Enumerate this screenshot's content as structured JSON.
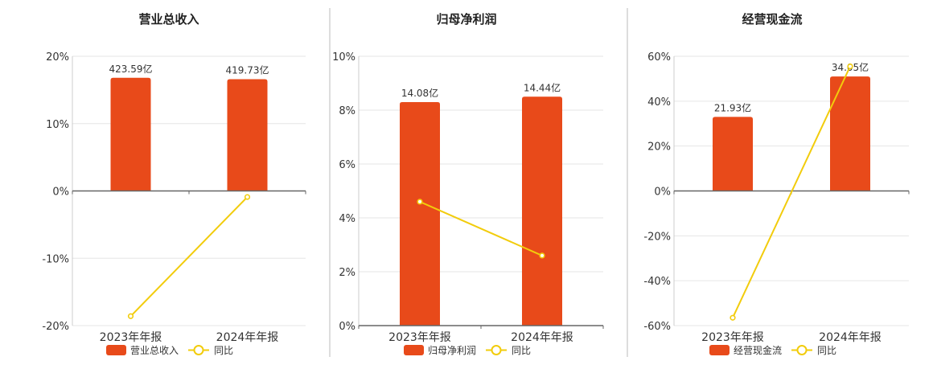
{
  "chart_data": [
    {
      "type": "bar",
      "title": "营业总收入",
      "categories": [
        "2023年年报",
        "2024年年报"
      ],
      "series": [
        {
          "name": "营业总收入",
          "type": "bar",
          "values": [
            16.8,
            16.6
          ],
          "labels": [
            "423.59亿",
            "419.73亿"
          ]
        },
        {
          "name": "同比",
          "type": "line",
          "values": [
            -18.6,
            -0.9
          ]
        }
      ],
      "ylim": [
        -20,
        20
      ],
      "yticks": [
        20,
        10,
        0,
        -10,
        -20
      ],
      "ytick_labels": [
        "20%",
        "10%",
        "0%",
        "-10%",
        "-20%"
      ],
      "grid": true,
      "legend": "bottom",
      "colors": {
        "bar": "#E84A1A",
        "line": "#F2CC0C"
      }
    },
    {
      "type": "bar",
      "title": "归母净利润",
      "categories": [
        "2023年年报",
        "2024年年报"
      ],
      "series": [
        {
          "name": "归母净利润",
          "type": "bar",
          "values": [
            8.3,
            8.5
          ],
          "labels": [
            "14.08亿",
            "14.44亿"
          ]
        },
        {
          "name": "同比",
          "type": "line",
          "values": [
            4.6,
            2.6
          ]
        }
      ],
      "ylim": [
        0,
        10
      ],
      "yticks": [
        10,
        8,
        6,
        4,
        2,
        0
      ],
      "ytick_labels": [
        "10%",
        "8%",
        "6%",
        "4%",
        "2%",
        "0%"
      ],
      "grid": true,
      "legend": "bottom",
      "colors": {
        "bar": "#E84A1A",
        "line": "#F2CC0C"
      }
    },
    {
      "type": "bar",
      "title": "经营现金流",
      "categories": [
        "2023年年报",
        "2024年年报"
      ],
      "series": [
        {
          "name": "经营现金流",
          "type": "bar",
          "values": [
            33,
            51
          ],
          "labels": [
            "21.93亿",
            "34.05亿"
          ]
        },
        {
          "name": "同比",
          "type": "line",
          "values": [
            -56.5,
            55.5
          ]
        }
      ],
      "ylim": [
        -60,
        60
      ],
      "yticks": [
        60,
        40,
        20,
        0,
        -20,
        -40,
        -60
      ],
      "ytick_labels": [
        "60%",
        "40%",
        "20%",
        "0%",
        "-20%",
        "-40%",
        "-60%"
      ],
      "grid": true,
      "legend": "bottom",
      "colors": {
        "bar": "#E84A1A",
        "line": "#F2CC0C"
      }
    }
  ]
}
